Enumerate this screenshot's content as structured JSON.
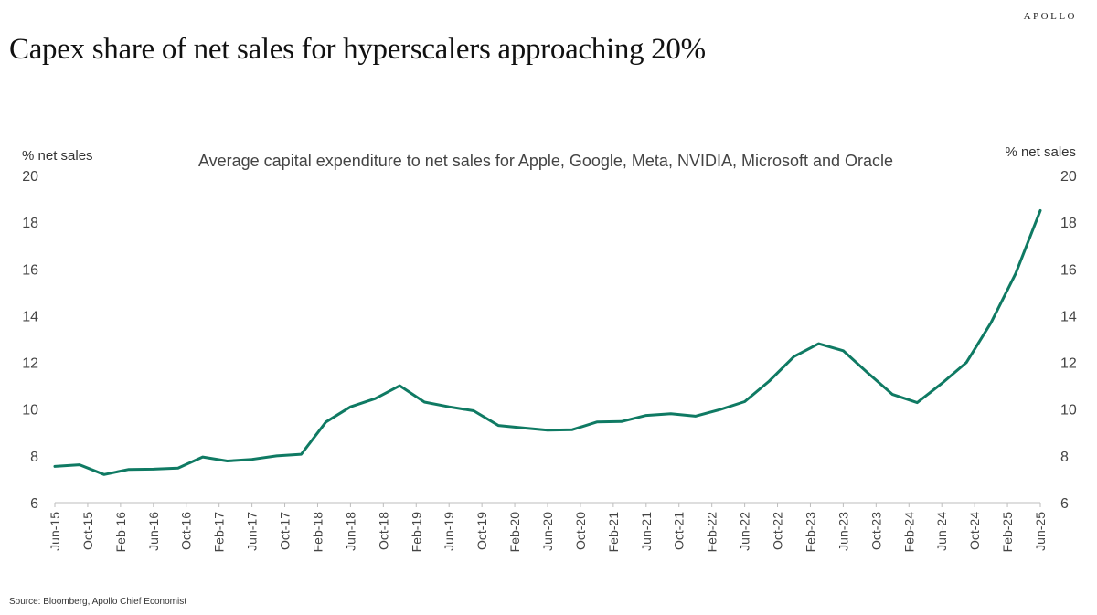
{
  "header": {
    "brand": "APOLLO",
    "title": "Capex share of net sales for hyperscalers approaching 20%"
  },
  "footer": {
    "source": "Source: Bloomberg, Apollo Chief Economist"
  },
  "chart_data": {
    "type": "line",
    "title": "Average capital expenditure to net sales for Apple, Google, Meta, NVIDIA, Microsoft and Oracle",
    "ylabel_left": "% net sales",
    "ylabel_right": "% net sales",
    "ylim": [
      6,
      20
    ],
    "yticks": [
      6,
      8,
      10,
      12,
      14,
      16,
      18,
      20
    ],
    "grid": false,
    "line_color": "#0f7a63",
    "x_tick_labels": [
      "Jun-15",
      "Oct-15",
      "Feb-16",
      "Jun-16",
      "Oct-16",
      "Feb-17",
      "Jun-17",
      "Oct-17",
      "Feb-18",
      "Jun-18",
      "Oct-18",
      "Feb-19",
      "Jun-19",
      "Oct-19",
      "Feb-20",
      "Jun-20",
      "Oct-20",
      "Feb-21",
      "Jun-21",
      "Oct-21",
      "Feb-22",
      "Jun-22",
      "Oct-22",
      "Feb-23",
      "Jun-23",
      "Oct-23",
      "Feb-24",
      "Jun-24",
      "Oct-24",
      "Feb-25",
      "Jun-25"
    ],
    "series": [
      {
        "values": [
          [
            "Jun-15",
            7.55
          ],
          [
            "Sep-15",
            7.62
          ],
          [
            "Dec-15",
            7.2
          ],
          [
            "Mar-16",
            7.42
          ],
          [
            "Jun-16",
            7.43
          ],
          [
            "Sep-16",
            7.48
          ],
          [
            "Dec-16",
            7.95
          ],
          [
            "Mar-17",
            7.78
          ],
          [
            "Jun-17",
            7.85
          ],
          [
            "Sep-17",
            8.0
          ],
          [
            "Dec-17",
            8.07
          ],
          [
            "Mar-18",
            9.45
          ],
          [
            "Jun-18",
            10.1
          ],
          [
            "Sep-18",
            10.45
          ],
          [
            "Dec-18",
            11.0
          ],
          [
            "Mar-19",
            10.3
          ],
          [
            "Jun-19",
            10.1
          ],
          [
            "Sep-19",
            9.93
          ],
          [
            "Dec-19",
            9.3
          ],
          [
            "Mar-20",
            9.2
          ],
          [
            "Jun-20",
            9.1
          ],
          [
            "Sep-20",
            9.12
          ],
          [
            "Dec-20",
            9.45
          ],
          [
            "Mar-21",
            9.47
          ],
          [
            "Jun-21",
            9.73
          ],
          [
            "Sep-21",
            9.8
          ],
          [
            "Dec-21",
            9.7
          ],
          [
            "Mar-22",
            9.98
          ],
          [
            "Jun-22",
            10.32
          ],
          [
            "Sep-22",
            11.2
          ],
          [
            "Dec-22",
            12.25
          ],
          [
            "Mar-23",
            12.8
          ],
          [
            "Jun-23",
            12.5
          ],
          [
            "Sep-23",
            11.55
          ],
          [
            "Dec-23",
            10.63
          ],
          [
            "Mar-24",
            10.28
          ],
          [
            "Jun-24",
            11.1
          ],
          [
            "Sep-24",
            12.0
          ],
          [
            "Dec-24",
            13.7
          ],
          [
            "Mar-25",
            15.8
          ],
          [
            "Jun-25",
            18.5
          ]
        ]
      }
    ]
  }
}
